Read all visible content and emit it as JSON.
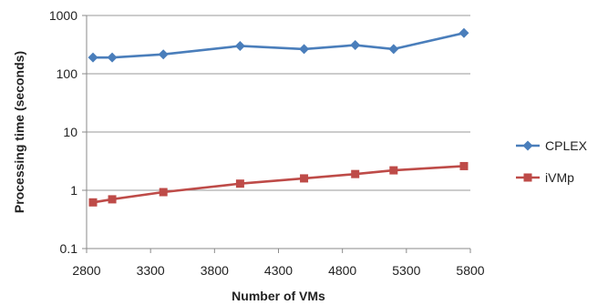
{
  "chart_data": {
    "type": "line",
    "xlabel": "Number of VMs",
    "ylabel": "Processing time (seconds)",
    "xlim": [
      2800,
      5800
    ],
    "ylim": [
      0.1,
      1000
    ],
    "y_scale": "log",
    "x_ticks": [
      "2800",
      "3300",
      "3800",
      "4300",
      "4800",
      "5300",
      "5800"
    ],
    "y_ticks": [
      "0.1",
      "1",
      "10",
      "100",
      "1000"
    ],
    "grid": "horizontal",
    "legend_position": "right",
    "x": [
      2850,
      3000,
      3400,
      4000,
      4500,
      4900,
      5200,
      5750
    ],
    "series": [
      {
        "name": "CPLEX",
        "color": "#4a7ebb",
        "marker": "diamond",
        "values": [
          190,
          190,
          215,
          300,
          265,
          310,
          265,
          500
        ]
      },
      {
        "name": "iVMp",
        "color": "#be4b48",
        "marker": "square",
        "values": [
          0.62,
          0.7,
          0.93,
          1.3,
          1.6,
          1.9,
          2.2,
          2.6
        ]
      }
    ]
  }
}
